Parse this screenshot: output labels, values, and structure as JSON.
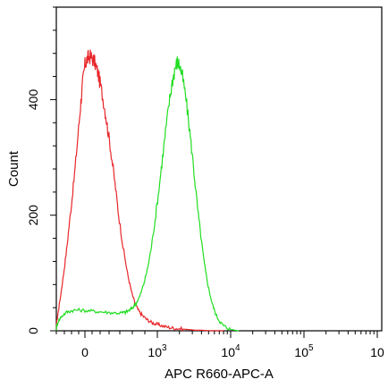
{
  "chart_data": {
    "type": "line",
    "title": "",
    "xlabel": "APC R660-APC-A",
    "ylabel": "Count",
    "y_ticks": [
      {
        "value": 0,
        "label": "0"
      },
      {
        "value": 200,
        "label": "200"
      },
      {
        "value": 400,
        "label": "400"
      }
    ],
    "x_ticks": [
      {
        "label": "0",
        "sup": ""
      },
      {
        "label": "10",
        "sup": "3"
      },
      {
        "label": "10",
        "sup": "4"
      },
      {
        "label": "10",
        "sup": "5"
      },
      {
        "label": "10",
        "sup": ""
      }
    ],
    "ylim": [
      0,
      560
    ],
    "grid": false,
    "legend": "none",
    "series": [
      {
        "color": "#e8262a",
        "points": [
          [
            -0.4,
            0
          ],
          [
            -0.38,
            20
          ],
          [
            -0.35,
            45
          ],
          [
            -0.3,
            90
          ],
          [
            -0.25,
            140
          ],
          [
            -0.2,
            200
          ],
          [
            -0.15,
            260
          ],
          [
            -0.1,
            330
          ],
          [
            -0.06,
            390
          ],
          [
            -0.03,
            430
          ],
          [
            0.0,
            460
          ],
          [
            0.03,
            470
          ],
          [
            0.06,
            475
          ],
          [
            0.1,
            472
          ],
          [
            0.14,
            462
          ],
          [
            0.18,
            445
          ],
          [
            0.22,
            420
          ],
          [
            0.27,
            385
          ],
          [
            0.31,
            350
          ],
          [
            0.36,
            305
          ],
          [
            0.41,
            255
          ],
          [
            0.46,
            200
          ],
          [
            0.52,
            145
          ],
          [
            0.58,
            100
          ],
          [
            0.63,
            70
          ],
          [
            0.68,
            48
          ],
          [
            0.73,
            35
          ],
          [
            0.78,
            27
          ],
          [
            0.84,
            20
          ],
          [
            0.9,
            15
          ],
          [
            0.96,
            12
          ],
          [
            1.02,
            10
          ],
          [
            1.1,
            7
          ],
          [
            1.18,
            5
          ],
          [
            1.26,
            4
          ],
          [
            1.34,
            3
          ],
          [
            1.42,
            2
          ],
          [
            1.5,
            1
          ],
          [
            1.6,
            1
          ],
          [
            1.7,
            0
          ],
          [
            1.9,
            0
          ]
        ]
      },
      {
        "color": "#22dd22",
        "points": [
          [
            -0.4,
            0
          ],
          [
            -0.37,
            15
          ],
          [
            -0.32,
            25
          ],
          [
            -0.25,
            32
          ],
          [
            -0.18,
            35
          ],
          [
            -0.1,
            36
          ],
          [
            0.0,
            35
          ],
          [
            0.1,
            34
          ],
          [
            0.2,
            33
          ],
          [
            0.3,
            32
          ],
          [
            0.4,
            31
          ],
          [
            0.5,
            31
          ],
          [
            0.55,
            32
          ],
          [
            0.6,
            35
          ],
          [
            0.65,
            40
          ],
          [
            0.7,
            48
          ],
          [
            0.75,
            60
          ],
          [
            0.8,
            80
          ],
          [
            0.85,
            105
          ],
          [
            0.9,
            140
          ],
          [
            0.95,
            185
          ],
          [
            1.0,
            235
          ],
          [
            1.05,
            290
          ],
          [
            1.1,
            345
          ],
          [
            1.15,
            395
          ],
          [
            1.19,
            430
          ],
          [
            1.23,
            455
          ],
          [
            1.26,
            465
          ],
          [
            1.29,
            460
          ],
          [
            1.33,
            440
          ],
          [
            1.38,
            400
          ],
          [
            1.43,
            345
          ],
          [
            1.48,
            285
          ],
          [
            1.53,
            220
          ],
          [
            1.58,
            165
          ],
          [
            1.63,
            115
          ],
          [
            1.68,
            78
          ],
          [
            1.73,
            50
          ],
          [
            1.78,
            30
          ],
          [
            1.83,
            18
          ],
          [
            1.88,
            10
          ],
          [
            1.94,
            5
          ],
          [
            2.0,
            2
          ],
          [
            2.1,
            0
          ]
        ]
      }
    ]
  }
}
